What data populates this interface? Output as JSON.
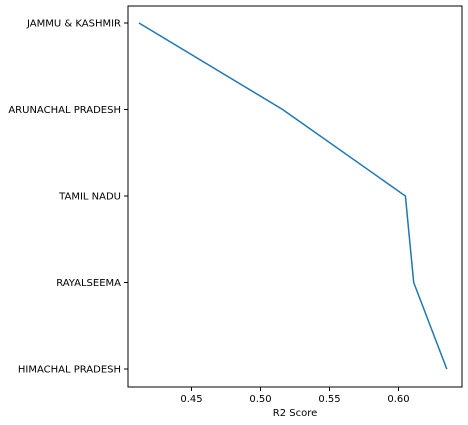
{
  "chart_data": {
    "type": "line",
    "title": "",
    "xlabel": "R2 Score",
    "ylabel": "",
    "categories": [
      "JAMMU & KASHMIR",
      "ARUNACHAL PRADESH",
      "TAMIL NADU",
      "RAYALSEEMA",
      "HIMACHAL PRADESH"
    ],
    "series": [
      {
        "values": [
          0.412,
          0.516,
          0.605,
          0.611,
          0.635
        ]
      }
    ],
    "xlim": [
      0.404,
      0.646
    ],
    "xticks": [
      "0.45",
      "0.50",
      "0.55",
      "0.60"
    ],
    "xtick_values": [
      0.45,
      0.5,
      0.55,
      0.6
    ],
    "grid": false,
    "legend": "none",
    "colors": {
      "line": "#1f77b4",
      "axis": "#000000",
      "background": "#ffffff"
    }
  }
}
